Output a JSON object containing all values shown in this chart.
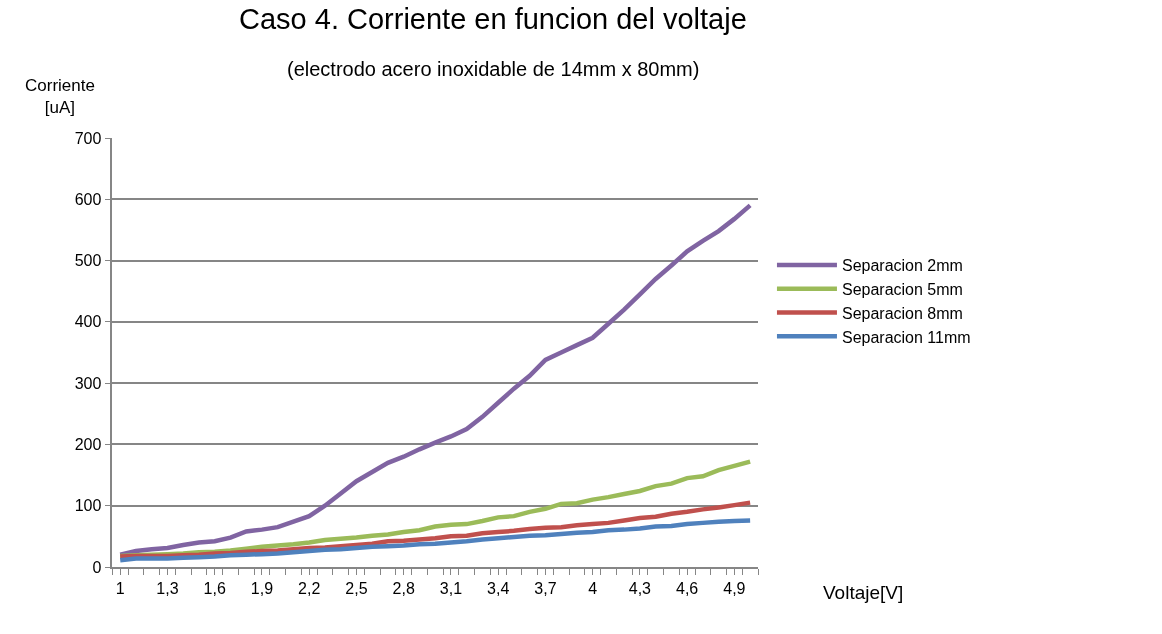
{
  "chart_data": {
    "type": "line",
    "title": "Caso 4. Corriente en funcion del voltaje",
    "subtitle": "(electrodo acero inoxidable de 14mm x 80mm)",
    "xlabel": "Voltaje[V]",
    "ylabel": "Corriente\n[uA]",
    "categories": [
      "1",
      null,
      null,
      "1,3",
      null,
      null,
      "1,6",
      null,
      null,
      "1,9",
      null,
      null,
      "2,2",
      null,
      null,
      "2,5",
      null,
      null,
      "2,8",
      null,
      null,
      "3,1",
      null,
      null,
      "3,4",
      null,
      null,
      "3,7",
      null,
      null,
      "4",
      null,
      null,
      "4,3",
      null,
      null,
      "4,6",
      null,
      null,
      "4,9",
      null
    ],
    "ylim": [
      0,
      700
    ],
    "yticks": [
      0,
      100,
      200,
      300,
      400,
      500,
      600,
      700
    ],
    "grid": "y",
    "legend": "right",
    "marker": "none",
    "line_style": "solid",
    "series": [
      {
        "name": "Separacion 2mm",
        "color": "#8064a2",
        "values": [
          20,
          26,
          29,
          31,
          36,
          40,
          42,
          48,
          58,
          61,
          65,
          74,
          83,
          100,
          120,
          140,
          155,
          170,
          180,
          192,
          203,
          213,
          225,
          245,
          268,
          291,
          312,
          338,
          350,
          362,
          374,
          397,
          420,
          445,
          470,
          492,
          515,
          532,
          548,
          568,
          590
        ]
      },
      {
        "name": "Separacion 5mm",
        "color": "#9bbb59",
        "values": [
          18,
          19,
          20,
          21,
          22,
          24,
          25,
          27,
          30,
          33,
          35,
          37,
          40,
          44,
          46,
          48,
          51,
          53,
          57,
          60,
          66,
          69,
          70,
          75,
          81,
          83,
          90,
          95,
          103,
          104,
          110,
          114,
          119,
          124,
          132,
          136,
          145,
          148,
          158,
          165,
          172
        ]
      },
      {
        "name": "Separacion 8mm",
        "color": "#c0504d",
        "values": [
          17,
          18,
          18,
          18,
          19,
          20,
          22,
          23,
          25,
          26,
          27,
          29,
          31,
          32,
          34,
          36,
          38,
          42,
          43,
          45,
          47,
          50,
          51,
          55,
          57,
          59,
          62,
          64,
          65,
          68,
          70,
          72,
          76,
          80,
          82,
          87,
          90,
          94,
          97,
          101,
          105
        ]
      },
      {
        "name": "Separacion 11mm",
        "color": "#4f81bd",
        "values": [
          11,
          14,
          14,
          14,
          15,
          16,
          17,
          19,
          20,
          21,
          22,
          24,
          26,
          28,
          29,
          31,
          33,
          34,
          35,
          37,
          38,
          40,
          42,
          45,
          47,
          49,
          51,
          52,
          54,
          56,
          57,
          60,
          61,
          63,
          66,
          67,
          70,
          72,
          74,
          75,
          76
        ]
      }
    ]
  }
}
